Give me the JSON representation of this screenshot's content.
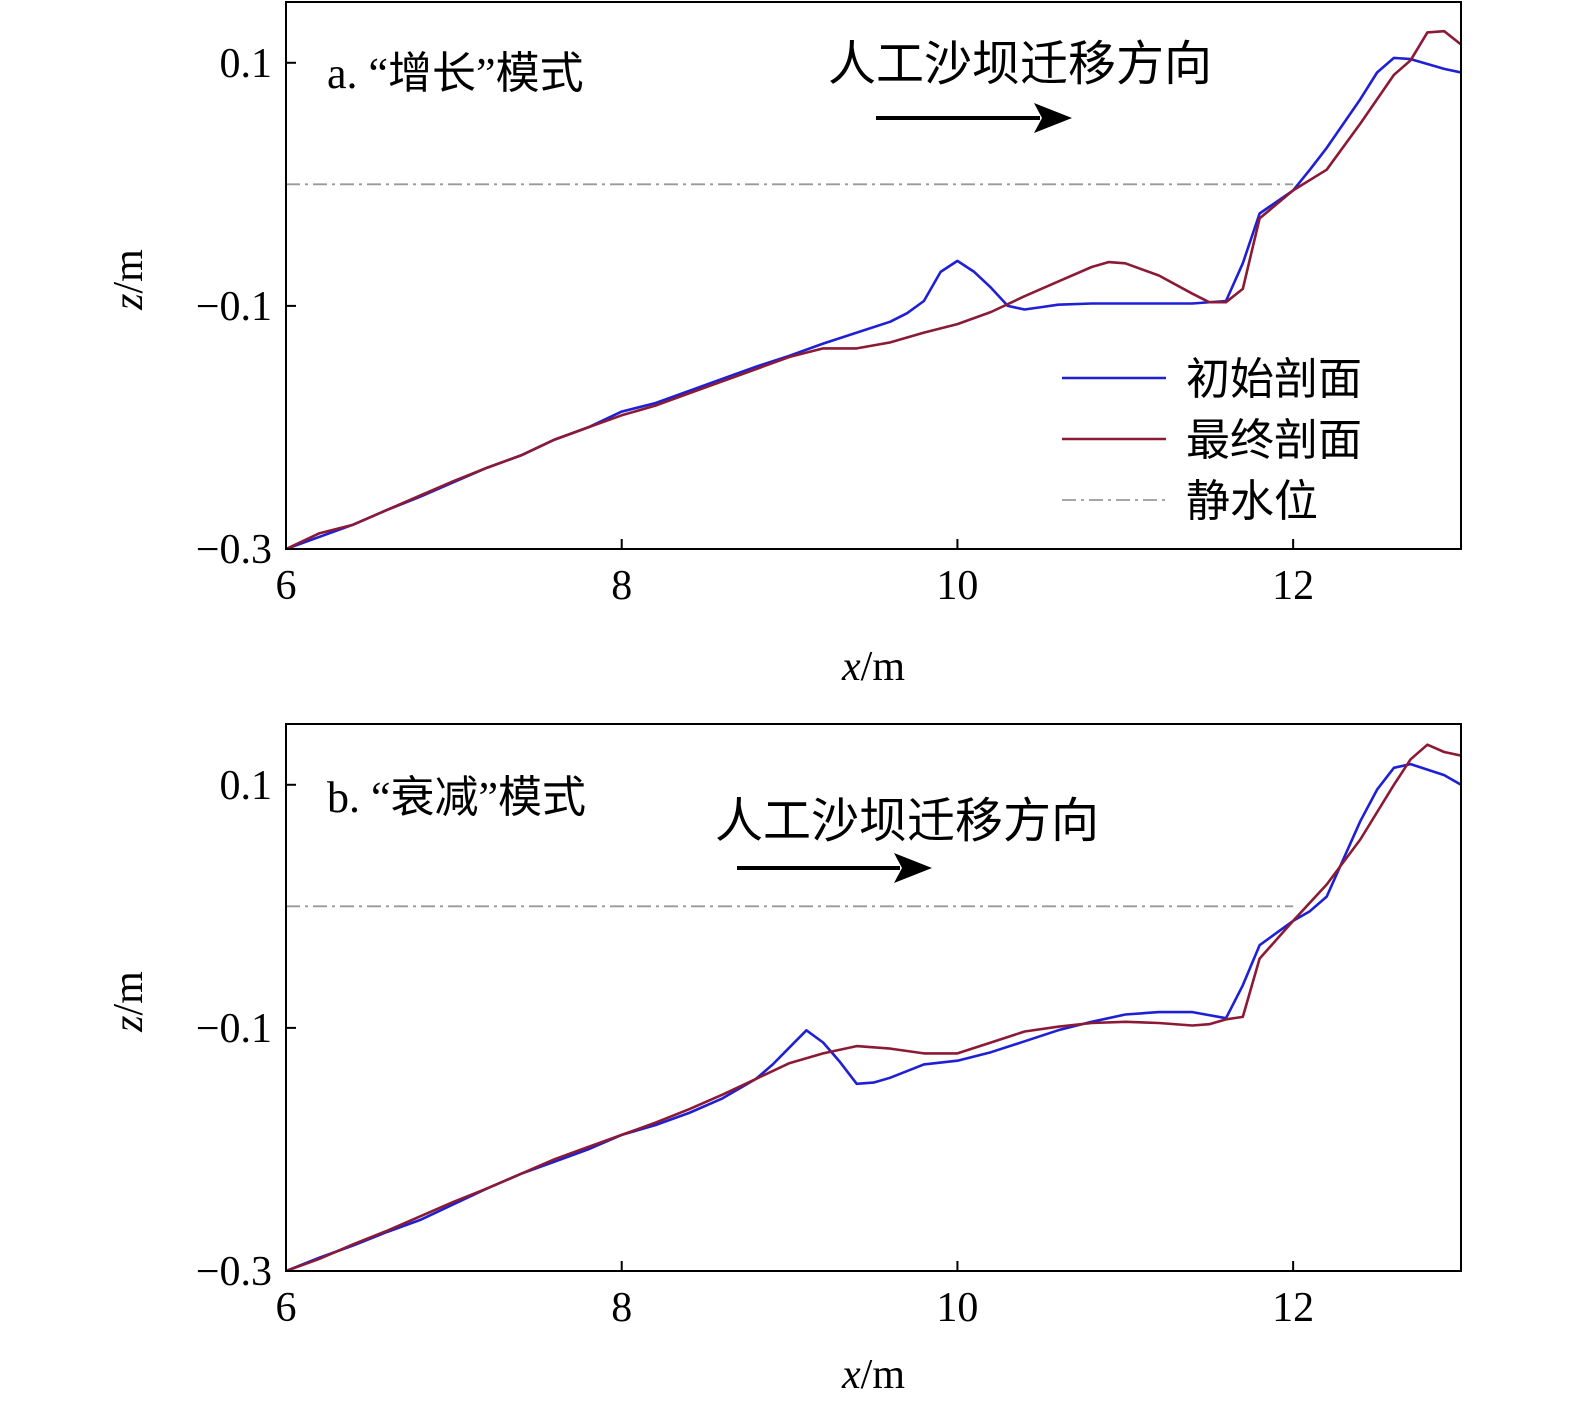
{
  "chart_data": [
    {
      "type": "line",
      "title": "a. “增长”模式",
      "xlabel": "x/m",
      "ylabel": "z/m",
      "xlim": [
        6,
        13
      ],
      "ylim": [
        -0.3,
        0.15
      ],
      "xticks": [
        6,
        8,
        10,
        12
      ],
      "xtick_labels": [
        "6",
        "8",
        "10",
        "12"
      ],
      "yticks": [
        0.1,
        -0.1,
        -0.3
      ],
      "ytick_labels": [
        "0.1",
        "−0.1",
        "−0.3"
      ],
      "annotation": "人工沙坝迁移方向",
      "still_water_level": 0.0,
      "legend": [
        "初始剖面",
        "最终剖面",
        "静水位"
      ],
      "legend_position": "right",
      "colors": {
        "initial": "#1f1fd6",
        "final": "#8b1a35",
        "still_water": "#999999"
      },
      "series": [
        {
          "name": "初始剖面",
          "x": [
            6.0,
            6.2,
            6.4,
            6.6,
            6.8,
            7.0,
            7.2,
            7.4,
            7.6,
            7.8,
            8.0,
            8.2,
            8.4,
            8.6,
            8.8,
            9.0,
            9.2,
            9.4,
            9.6,
            9.7,
            9.8,
            9.9,
            10.0,
            10.1,
            10.2,
            10.3,
            10.4,
            10.5,
            10.6,
            10.8,
            11.0,
            11.2,
            11.4,
            11.6,
            11.7,
            11.8,
            12.0,
            12.1,
            12.2,
            12.4,
            12.5,
            12.6,
            12.7,
            12.9,
            13.0
          ],
          "values": [
            -0.3,
            -0.29,
            -0.28,
            -0.268,
            -0.257,
            -0.245,
            -0.233,
            -0.223,
            -0.21,
            -0.2,
            -0.187,
            -0.18,
            -0.17,
            -0.16,
            -0.15,
            -0.141,
            -0.131,
            -0.122,
            -0.113,
            -0.106,
            -0.096,
            -0.072,
            -0.063,
            -0.072,
            -0.085,
            -0.1,
            -0.103,
            -0.101,
            -0.099,
            -0.098,
            -0.098,
            -0.098,
            -0.098,
            -0.096,
            -0.065,
            -0.024,
            -0.005,
            0.012,
            0.03,
            0.07,
            0.092,
            0.104,
            0.103,
            0.095,
            0.092
          ]
        },
        {
          "name": "最终剖面",
          "x": [
            6.0,
            6.2,
            6.4,
            6.6,
            6.8,
            7.0,
            7.2,
            7.4,
            7.6,
            7.8,
            8.0,
            8.2,
            8.4,
            8.6,
            8.8,
            9.0,
            9.2,
            9.4,
            9.6,
            9.8,
            10.0,
            10.2,
            10.4,
            10.6,
            10.8,
            10.9,
            11.0,
            11.2,
            11.4,
            11.5,
            11.6,
            11.7,
            11.8,
            12.0,
            12.2,
            12.4,
            12.6,
            12.7,
            12.8,
            12.9,
            13.0
          ],
          "values": [
            -0.3,
            -0.287,
            -0.28,
            -0.268,
            -0.256,
            -0.244,
            -0.233,
            -0.223,
            -0.21,
            -0.2,
            -0.19,
            -0.182,
            -0.172,
            -0.162,
            -0.152,
            -0.142,
            -0.135,
            -0.135,
            -0.13,
            -0.122,
            -0.115,
            -0.105,
            -0.092,
            -0.08,
            -0.068,
            -0.064,
            -0.065,
            -0.075,
            -0.09,
            -0.097,
            -0.097,
            -0.086,
            -0.028,
            -0.005,
            0.012,
            0.05,
            0.09,
            0.102,
            0.125,
            0.126,
            0.115
          ]
        }
      ]
    },
    {
      "type": "line",
      "title": "b. “衰减”模式",
      "xlabel": "x/m",
      "ylabel": "z/m",
      "xlim": [
        6,
        13
      ],
      "ylim": [
        -0.3,
        0.15
      ],
      "xticks": [
        6,
        8,
        10,
        12
      ],
      "xtick_labels": [
        "6",
        "8",
        "10",
        "12"
      ],
      "yticks": [
        0.1,
        -0.1,
        -0.3
      ],
      "ytick_labels": [
        "0.1",
        "−0.1",
        "−0.3"
      ],
      "annotation": "人工沙坝迁移方向",
      "still_water_level": 0.0,
      "colors": {
        "initial": "#1f1fd6",
        "final": "#8b1a35",
        "still_water": "#999999"
      },
      "series": [
        {
          "name": "初始剖面",
          "x": [
            6.0,
            6.2,
            6.4,
            6.6,
            6.8,
            7.0,
            7.2,
            7.4,
            7.6,
            7.8,
            8.0,
            8.2,
            8.4,
            8.6,
            8.8,
            8.9,
            9.0,
            9.1,
            9.2,
            9.3,
            9.4,
            9.5,
            9.6,
            9.8,
            10.0,
            10.2,
            10.4,
            10.6,
            10.8,
            11.0,
            11.2,
            11.4,
            11.6,
            11.7,
            11.8,
            12.0,
            12.1,
            12.2,
            12.4,
            12.5,
            12.6,
            12.7,
            12.9,
            13.0
          ],
          "values": [
            -0.3,
            -0.289,
            -0.279,
            -0.268,
            -0.258,
            -0.245,
            -0.232,
            -0.22,
            -0.21,
            -0.2,
            -0.188,
            -0.18,
            -0.17,
            -0.158,
            -0.142,
            -0.13,
            -0.116,
            -0.102,
            -0.112,
            -0.128,
            -0.146,
            -0.145,
            -0.141,
            -0.13,
            -0.127,
            -0.12,
            -0.111,
            -0.102,
            -0.095,
            -0.089,
            -0.087,
            -0.087,
            -0.092,
            -0.065,
            -0.032,
            -0.012,
            -0.004,
            0.008,
            0.07,
            0.096,
            0.114,
            0.117,
            0.108,
            0.1
          ]
        },
        {
          "name": "最终剖面",
          "x": [
            6.0,
            6.2,
            6.4,
            6.6,
            6.8,
            7.0,
            7.2,
            7.4,
            7.6,
            7.8,
            8.0,
            8.2,
            8.4,
            8.6,
            8.8,
            9.0,
            9.2,
            9.4,
            9.6,
            9.8,
            10.0,
            10.2,
            10.4,
            10.6,
            10.8,
            11.0,
            11.2,
            11.4,
            11.5,
            11.6,
            11.7,
            11.8,
            12.0,
            12.2,
            12.4,
            12.6,
            12.7,
            12.8,
            12.9,
            13.0
          ],
          "values": [
            -0.3,
            -0.29,
            -0.278,
            -0.267,
            -0.255,
            -0.243,
            -0.232,
            -0.22,
            -0.208,
            -0.198,
            -0.188,
            -0.178,
            -0.167,
            -0.155,
            -0.142,
            -0.129,
            -0.121,
            -0.115,
            -0.117,
            -0.121,
            -0.121,
            -0.112,
            -0.103,
            -0.099,
            -0.096,
            -0.095,
            -0.096,
            -0.098,
            -0.097,
            -0.093,
            -0.091,
            -0.043,
            -0.012,
            0.018,
            0.055,
            0.1,
            0.121,
            0.133,
            0.127,
            0.124
          ]
        }
      ]
    }
  ]
}
